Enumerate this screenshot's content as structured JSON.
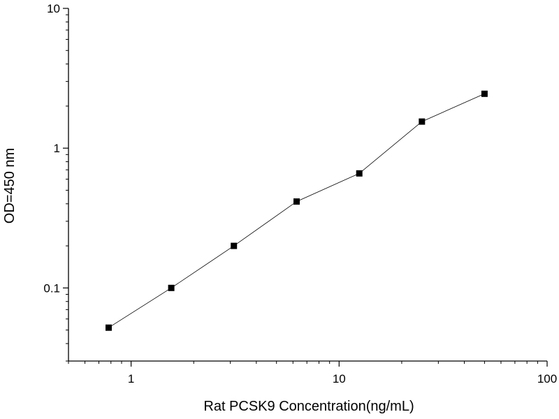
{
  "chart_data": {
    "type": "scatter",
    "title": "",
    "xlabel": "Rat PCSK9 Concentration(ng/mL)",
    "ylabel": "OD=450 nm",
    "xscale": "log",
    "yscale": "log",
    "xlim": [
      0.5,
      100
    ],
    "ylim": [
      0.03,
      10
    ],
    "x_ticks": [
      1,
      10,
      100
    ],
    "x_tick_labels": [
      "1",
      "10",
      "100"
    ],
    "y_ticks": [
      0.1,
      1,
      10
    ],
    "y_tick_labels": [
      "0.1",
      "1",
      "10"
    ],
    "grid": false,
    "legend": "none",
    "series": [
      {
        "x": [
          0.78,
          1.56,
          3.12,
          6.25,
          12.5,
          25,
          50
        ],
        "y": [
          0.052,
          0.1,
          0.2,
          0.415,
          0.66,
          1.55,
          2.45
        ],
        "marker": "square",
        "line": "solid",
        "color": "#000000"
      }
    ]
  }
}
